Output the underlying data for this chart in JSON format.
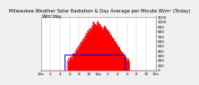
{
  "title": "Milwaukee Weather Solar Radiation & Day Average per Minute W/m² (Today)",
  "bg_color": "#f0f0f0",
  "plot_bg": "#ffffff",
  "grid_color": "#999999",
  "area_color": "#ff0000",
  "area_edge": "#dd0000",
  "avg_rect_color": "#0000cc",
  "ylim": [
    0,
    1100
  ],
  "xlim": [
    0,
    1440
  ],
  "yticks": [
    0,
    100,
    200,
    300,
    400,
    500,
    600,
    700,
    800,
    900,
    1000,
    1100
  ],
  "xtick_positions": [
    0,
    120,
    240,
    360,
    480,
    600,
    720,
    840,
    960,
    1080,
    1200,
    1320,
    1440
  ],
  "avg_rect_x0": 300,
  "avg_rect_x1": 1050,
  "avg_rect_y0": 0,
  "avg_rect_y1": 330,
  "peak_value": 950,
  "title_fontsize": 3.8,
  "tick_fontsize": 3.0
}
